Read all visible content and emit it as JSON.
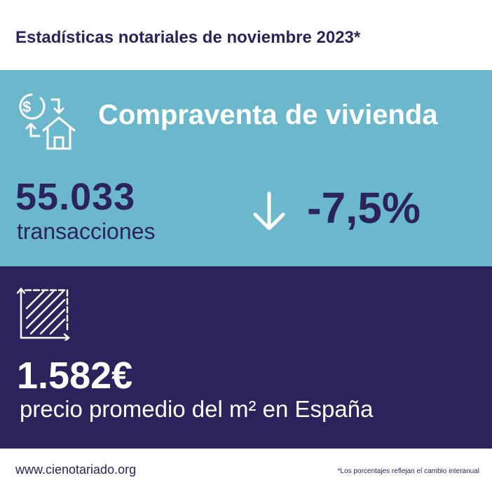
{
  "header": {
    "title": "Estadísticas notariales de noviembre 2023*"
  },
  "sales": {
    "title": "Compraventa de vivienda",
    "icon": "money-house-exchange-icon",
    "count": "55.033",
    "count_label": "transacciones",
    "change": "-7,5%",
    "trend_icon": "arrow-down-icon"
  },
  "price": {
    "icon": "area-square-icon",
    "value": "1.582€",
    "label": "precio promedio del m² en España"
  },
  "footer": {
    "url": "www.cienotariado.org",
    "note": "*Los porcentajes reflejan el cambio interanual"
  },
  "colors": {
    "navy": "#2a235c",
    "light_blue": "#6bb8cd"
  }
}
